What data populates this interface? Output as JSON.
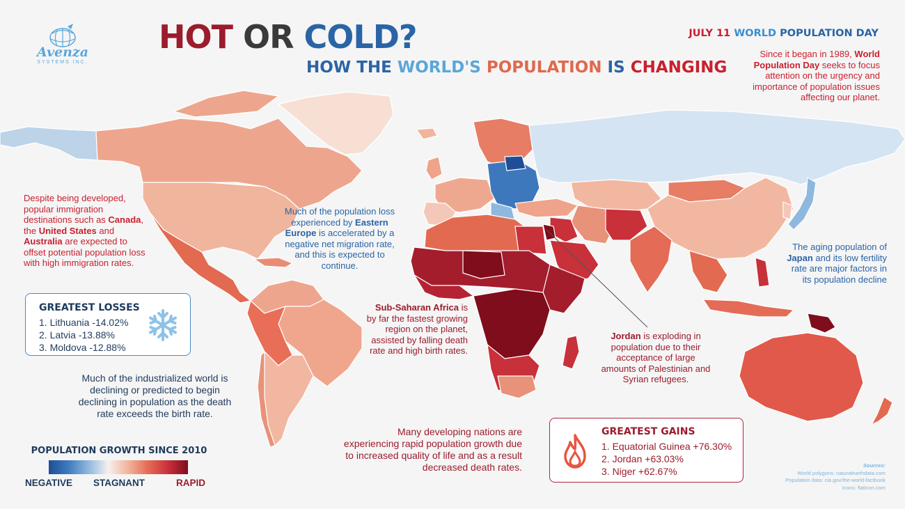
{
  "logo": {
    "name": "Avenza",
    "tagline": "SYSTEMS INC."
  },
  "title": {
    "word1": "HOT",
    "word2": "OR",
    "word3": "COLD?"
  },
  "subtitle": {
    "w1": "HOW THE",
    "w2": "WORLD'S",
    "w3": "POPULATION",
    "w4": "IS",
    "w5": "CHANGING"
  },
  "event": {
    "date_month": "JULY",
    "date_day": "11",
    "name_part1": "WORLD",
    "name_part2": "POPULATION DAY"
  },
  "intro": {
    "t1": "Since it began in 1989,",
    "b1": "World Population Day",
    "t2": "seeks to focus attention on the urgency and importance of population issues affecting our planet."
  },
  "note_immigration": {
    "t1": "Despite being developed, popular immigration destinations such as",
    "b1": "Canada",
    "t2": ", the",
    "b2": "United States",
    "t3": "and",
    "b3": "Australia",
    "t4": "are expected to offset potential population loss with high immigration rates."
  },
  "note_eastern_europe": {
    "t1": "Much of the population loss experienced by",
    "b1": "Eastern Europe",
    "t2": "is accelerated by a negative net migration rate, and this is expected to continue."
  },
  "note_japan": {
    "t1": "The aging population of",
    "b1": "Japan",
    "t2": "and its low fertility rate are major factors in its population decline"
  },
  "note_africa": {
    "b1": "Sub-Saharan Africa",
    "t1": "is by far the fastest growing region on the planet, assisted by falling death rate and high birth rates."
  },
  "note_jordan": {
    "b1": "Jordan",
    "t1": "is exploding in population due to their acceptance of large amounts of Palestinian and Syrian refugees."
  },
  "note_industrialized": "Much of the industrialized world is declining or predicted to begin declining in population as the death rate exceeds the birth rate.",
  "note_developing": "Many developing nations are experiencing rapid population growth due to increased quality of life and as a result decreased death rates.",
  "losses": {
    "title": "GREATEST LOSSES",
    "items": [
      "1. Lithuania -14.02%",
      "2. Latvia -13.88%",
      "3. Moldova -12.88%"
    ],
    "icon": "snowflake-icon"
  },
  "gains": {
    "title": "GREATEST GAINS",
    "items": [
      "1. Equatorial Guinea +76.30%",
      "2. Jordan +63.03%",
      "3. Niger +62.67%"
    ],
    "icon": "flame-icon"
  },
  "legend": {
    "title": "POPULATION GROWTH SINCE 2010",
    "negative": "NEGATIVE",
    "stagnant": "STAGNANT",
    "rapid": "RAPID",
    "colors": [
      "#1f4e96",
      "#3f7cbf",
      "#8fb8df",
      "#f7f0ee",
      "#f2b39a",
      "#e46b55",
      "#c8303a",
      "#7f0d1c"
    ]
  },
  "sources": {
    "title": "Sources:",
    "lines": [
      "World polygons: naturalearthdata.com",
      "Population data: cia.gov/the-world-factbook",
      "Icons: flaticon.com"
    ]
  },
  "colors": {
    "red": "#c8202f",
    "blue": "#2a64a6",
    "dark": "#3a3a3a"
  }
}
